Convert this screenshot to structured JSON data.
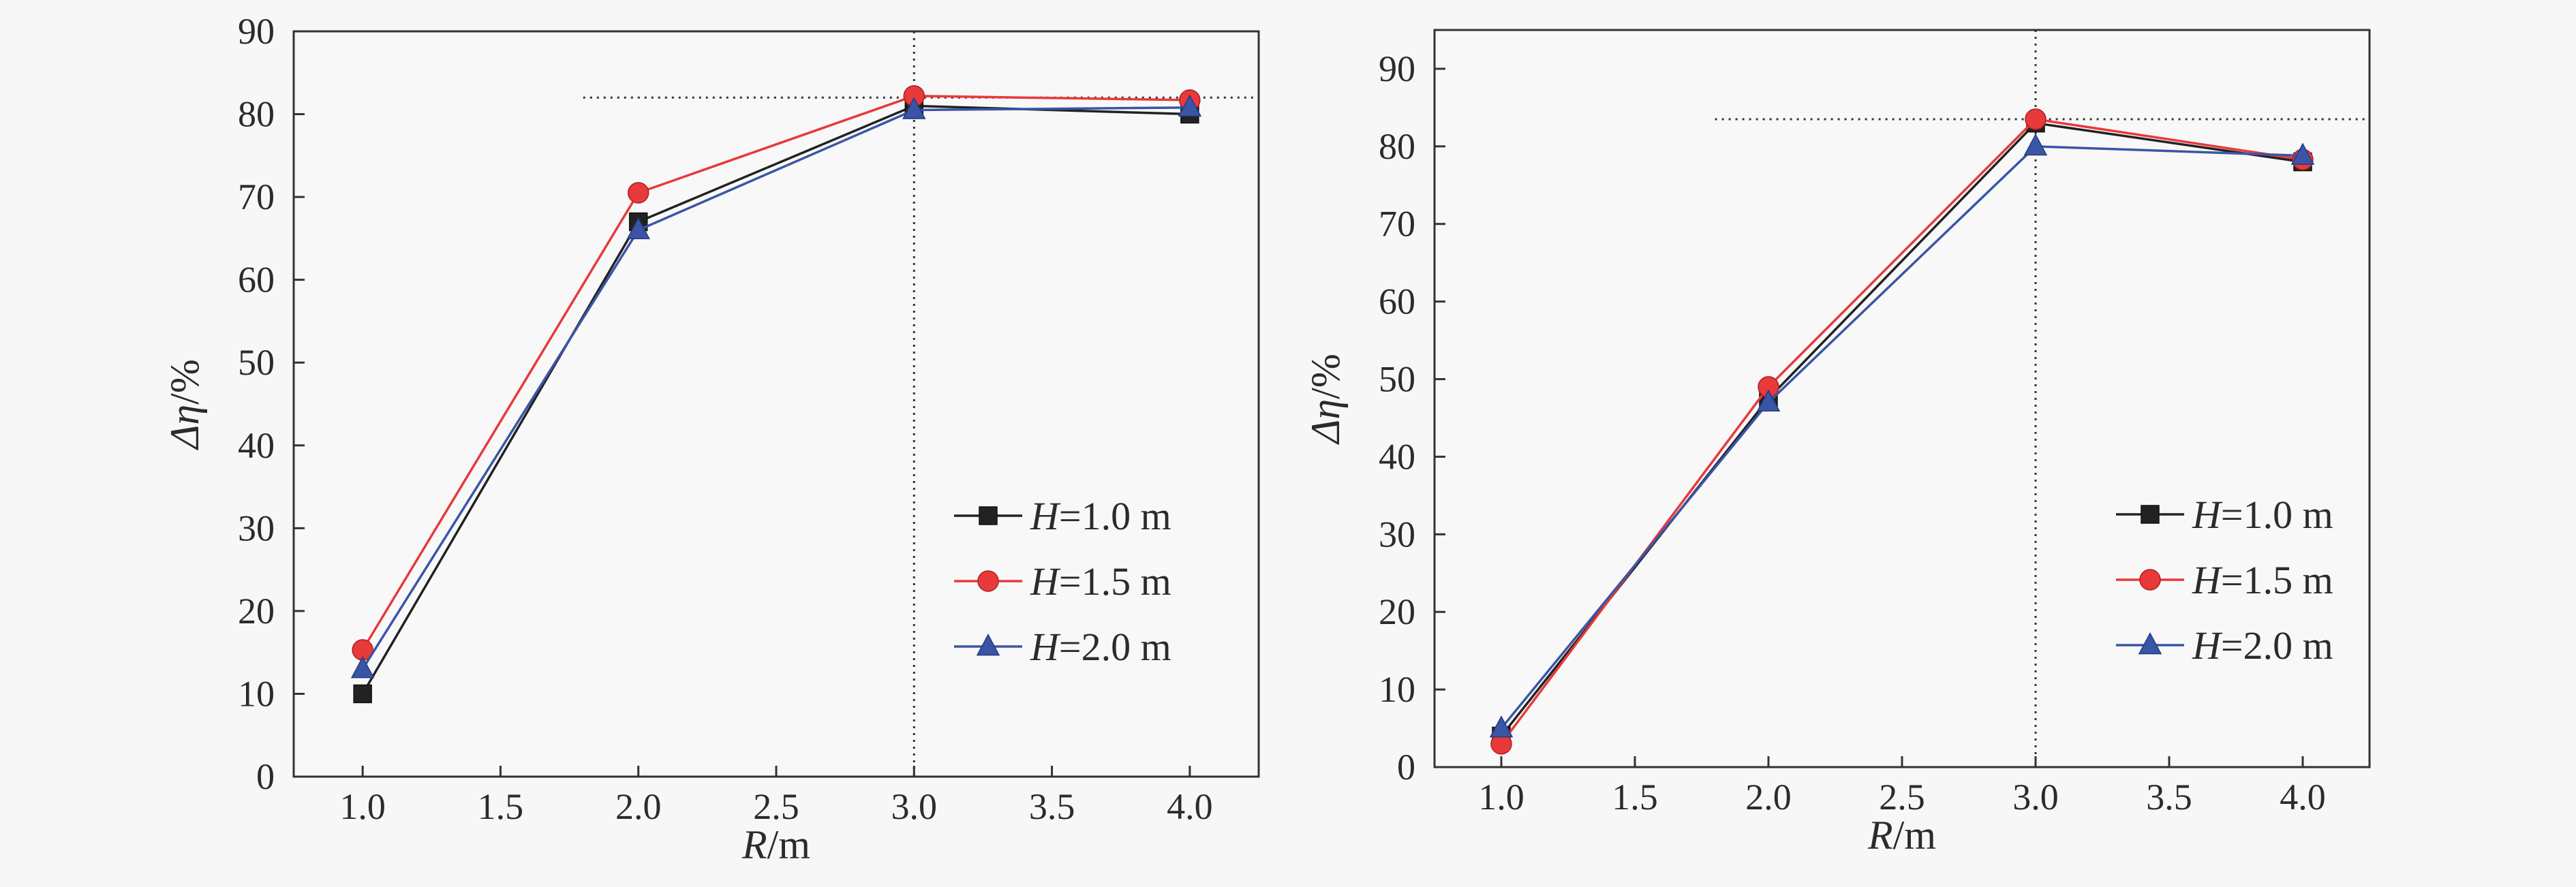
{
  "chart_data": [
    {
      "type": "line",
      "x": [
        1.0,
        2.0,
        3.0,
        4.0
      ],
      "xlim": [
        0.75,
        4.25
      ],
      "ylim": [
        0,
        90
      ],
      "xticks": [
        "1.0",
        "1.5",
        "2.0",
        "2.5",
        "3.0",
        "3.5",
        "4.0"
      ],
      "yticks": [
        "0",
        "10",
        "20",
        "30",
        "40",
        "50",
        "60",
        "70",
        "80",
        "90"
      ],
      "xlabel": {
        "main": "R",
        "unit": "/m"
      },
      "ylabel": {
        "main": "Δη",
        "unit": "/%"
      },
      "grid": false,
      "legend_placement": "lower-right",
      "reference_lines": {
        "x": 3.0,
        "y": 82
      },
      "series": [
        {
          "name": "H=1.0 m",
          "var": "H",
          "rest": "=1.0 m",
          "marker": "square",
          "color": "#222222",
          "values": [
            10,
            67,
            81,
            80
          ]
        },
        {
          "name": "H=1.5 m",
          "var": "H",
          "rest": "=1.5 m",
          "marker": "circle",
          "color": "#e8393b",
          "values": [
            15.3,
            70.5,
            82.2,
            81.7
          ]
        },
        {
          "name": "H=2.0 m",
          "var": "H",
          "rest": "=2.0 m",
          "marker": "triangle",
          "color": "#3b55a6",
          "values": [
            13,
            66,
            80.5,
            80.8
          ]
        }
      ]
    },
    {
      "type": "line",
      "x": [
        1.0,
        2.0,
        3.0,
        4.0
      ],
      "xlim": [
        0.75,
        4.25
      ],
      "ylim": [
        0,
        95
      ],
      "xticks": [
        "1.0",
        "1.5",
        "2.0",
        "2.5",
        "3.0",
        "3.5",
        "4.0"
      ],
      "yticks": [
        "0",
        "10",
        "20",
        "30",
        "40",
        "50",
        "60",
        "70",
        "80",
        "90"
      ],
      "xlabel": {
        "main": "R",
        "unit": "/m"
      },
      "ylabel": {
        "main": "Δη",
        "unit": "/%"
      },
      "grid": false,
      "legend_placement": "lower-right",
      "reference_lines": {
        "x": 3.0,
        "y": 83.5
      },
      "series": [
        {
          "name": "H=1.0 m",
          "var": "H",
          "rest": "=1.0 m",
          "marker": "square",
          "color": "#222222",
          "values": [
            4,
            47.5,
            83,
            78
          ]
        },
        {
          "name": "H=1.5 m",
          "var": "H",
          "rest": "=1.5 m",
          "marker": "circle",
          "color": "#e8393b",
          "values": [
            3,
            49,
            83.5,
            78.3
          ]
        },
        {
          "name": "H=2.0 m",
          "var": "H",
          "rest": "=2.0 m",
          "marker": "triangle",
          "color": "#3b55a6",
          "values": [
            5,
            47,
            80,
            78.8
          ]
        }
      ]
    }
  ]
}
